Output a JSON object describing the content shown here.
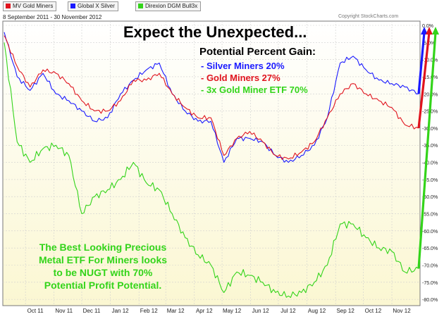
{
  "legend": {
    "items": [
      {
        "label": "MV Gold Miners",
        "color": "#e0141e"
      },
      {
        "label": "Global X Silver",
        "color": "#1a1aff"
      },
      {
        "label": "Direxion DGM Bull3x",
        "color": "#33d41a"
      }
    ]
  },
  "date_range": "8 September 2011 - 30 November 2012",
  "copyright": "Copyright StockCharts.com",
  "headline": "Expect the Unexpected...",
  "annotation": {
    "heading": "Potential Percent Gain:",
    "lines": [
      {
        "text": "- Silver Miners 20%",
        "color": "#1a1aff"
      },
      {
        "text": "- Gold Miners 27%",
        "color": "#e0141e"
      },
      {
        "text": "- 3x Gold Miner ETF 70%",
        "color": "#33d41a"
      }
    ]
  },
  "note_lines": [
    "The Best Looking Precious",
    "Metal ETF For Miners looks",
    "to be NUGT with 70%",
    "Potential Profit Potential."
  ],
  "chart_data": {
    "type": "line",
    "x": [
      "2011-09-08",
      "2011-09-22",
      "2011-10-06",
      "2011-10-20",
      "2011-11-03",
      "2011-11-17",
      "2011-12-01",
      "2011-12-15",
      "2011-12-29",
      "2012-01-12",
      "2012-01-26",
      "2012-02-09",
      "2012-02-23",
      "2012-03-08",
      "2012-03-22",
      "2012-04-05",
      "2012-04-19",
      "2012-05-03",
      "2012-05-17",
      "2012-05-31",
      "2012-06-14",
      "2012-06-28",
      "2012-07-12",
      "2012-07-26",
      "2012-08-09",
      "2012-08-23",
      "2012-09-06",
      "2012-09-20",
      "2012-10-04",
      "2012-10-18",
      "2012-11-01",
      "2012-11-15",
      "2012-11-30"
    ],
    "x_tick_labels": [
      "Oct 11",
      "Nov 11",
      "Dec 11",
      "Jan 12",
      "Feb 12",
      "Mar 12",
      "Apr 12",
      "May 12",
      "Jun 12",
      "Jul 12",
      "Aug 12",
      "Sep 12",
      "Oct 12",
      "Nov 12"
    ],
    "y_tick_labels": [
      "0.0%",
      "-5.0%",
      "-10.0%",
      "-15.0%",
      "-20.0%",
      "-25.0%",
      "-30.0%",
      "-35.0%",
      "-40.0%",
      "-45.0%",
      "-50.0%",
      "-55.0%",
      "-60.0%",
      "-65.0%",
      "-70.0%",
      "-75.0%",
      "-80.0%"
    ],
    "ylim": [
      -81,
      0
    ],
    "grid": true,
    "series": [
      {
        "name": "Global X Silver",
        "color": "#1a1aff",
        "values": [
          -2,
          -15,
          -19,
          -14,
          -20,
          -22,
          -25,
          -28,
          -27,
          -20,
          -16,
          -13,
          -11,
          -20,
          -25,
          -28,
          -28,
          -40,
          -33,
          -33,
          -34,
          -38,
          -40,
          -38,
          -35,
          -27,
          -11,
          -9,
          -13,
          -16,
          -17,
          -18,
          -20
        ]
      },
      {
        "name": "MV Gold Miners",
        "color": "#e0141e",
        "values": [
          -3,
          -12,
          -18,
          -13,
          -14,
          -17,
          -22,
          -25,
          -25,
          -22,
          -16,
          -16,
          -14,
          -20,
          -24,
          -27,
          -27,
          -38,
          -33,
          -31,
          -34,
          -38,
          -39,
          -37,
          -34,
          -27,
          -20,
          -17,
          -20,
          -22,
          -24,
          -29,
          -30
        ]
      },
      {
        "name": "Direxion DGM Bull3x",
        "color": "#33d41a",
        "values": [
          -5,
          -34,
          -40,
          -36,
          -35,
          -38,
          -55,
          -50,
          -48,
          -45,
          -40,
          -46,
          -48,
          -55,
          -62,
          -67,
          -70,
          -78,
          -72,
          -73,
          -75,
          -78,
          -79,
          -78,
          -75,
          -70,
          -58,
          -58,
          -62,
          -65,
          -66,
          -72,
          -71
        ]
      }
    ],
    "projection_arrows": [
      {
        "color": "#1a1aff",
        "from_value": -20,
        "to_value": 0
      },
      {
        "color": "#e0141e",
        "from_value": -30,
        "to_value": 0
      },
      {
        "color": "#33d41a",
        "from_value": -71,
        "to_value": 0
      }
    ]
  }
}
